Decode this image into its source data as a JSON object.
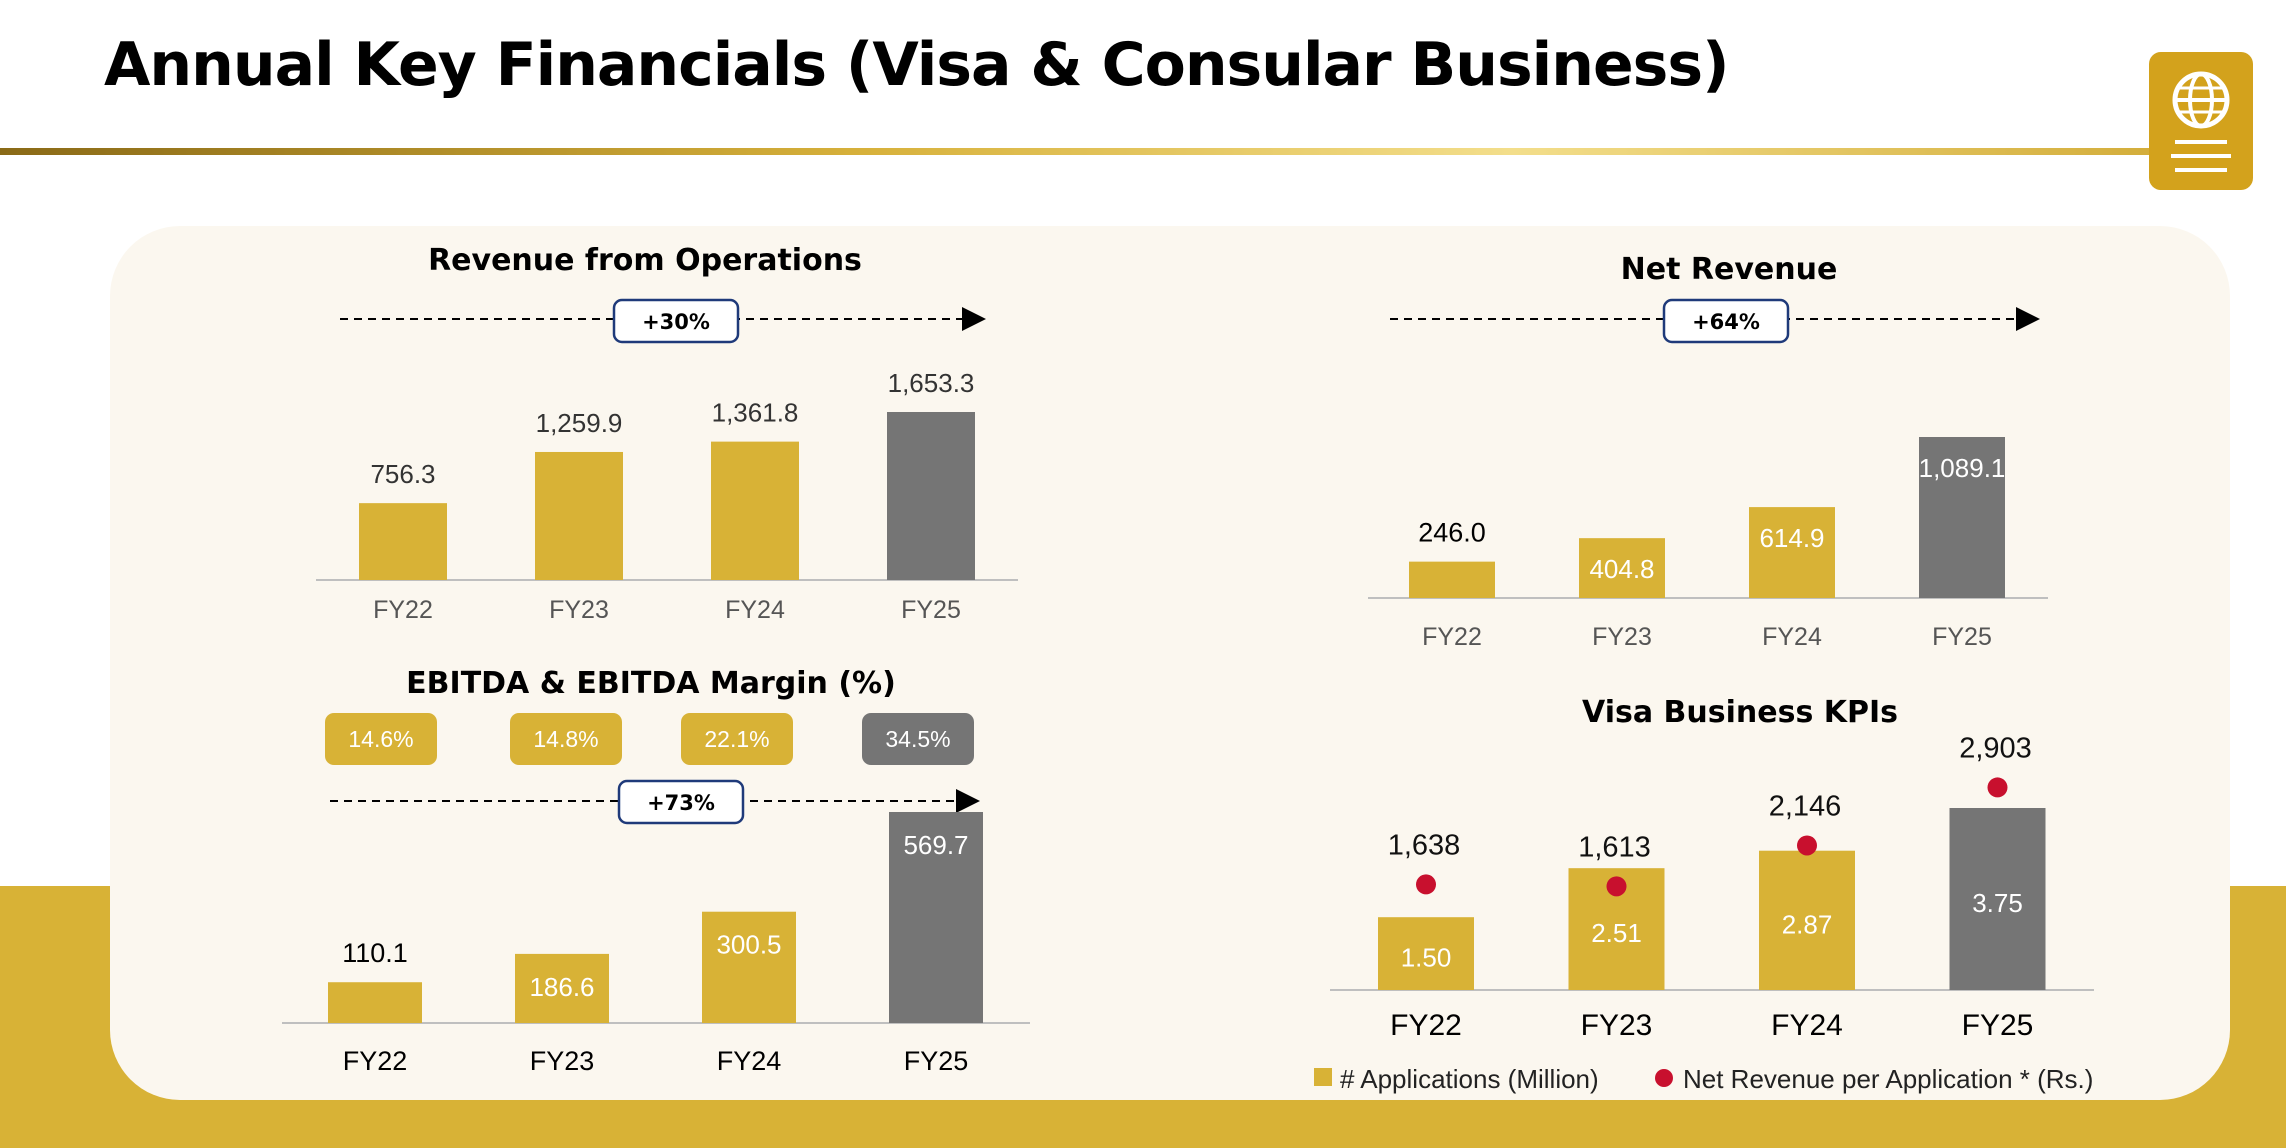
{
  "page": {
    "title": "Annual Key Financials (Visa & Consular Business)"
  },
  "colors": {
    "gold": "#d8b236",
    "grey": "#757575",
    "red": "#c8102e",
    "navy": "#1f3a7a",
    "panel": "#fbf7ef"
  },
  "icon": "globe-document-icon",
  "chart_data": [
    {
      "id": "revenue",
      "type": "bar",
      "title": "Revenue from Operations",
      "categories": [
        "FY22",
        "FY23",
        "FY24",
        "FY25"
      ],
      "values": [
        756.3,
        1259.9,
        1361.8,
        1653.3
      ],
      "value_labels": [
        "756.3",
        "1,259.9",
        "1,361.8",
        "1,653.3"
      ],
      "growth_label": "+30%",
      "ylim": [
        0,
        1653.3
      ],
      "highlight_last": true
    },
    {
      "id": "net_revenue",
      "type": "bar",
      "title": "Net Revenue",
      "categories": [
        "FY22",
        "FY23",
        "FY24",
        "FY25"
      ],
      "values": [
        246.0,
        404.8,
        614.9,
        1089.1
      ],
      "value_labels": [
        "246.0",
        "404.8",
        "614.9",
        "1,089.1"
      ],
      "growth_label": "+64%",
      "ylim": [
        0,
        1089.1
      ],
      "highlight_last": true
    },
    {
      "id": "ebitda",
      "type": "bar",
      "title": "EBITDA & EBITDA Margin (%)",
      "categories": [
        "FY22",
        "FY23",
        "FY24",
        "FY25"
      ],
      "values": [
        110.1,
        186.6,
        300.5,
        569.7
      ],
      "value_labels": [
        "110.1",
        "186.6",
        "300.5",
        "569.7"
      ],
      "margins": [
        "14.6%",
        "14.8%",
        "22.1%",
        "34.5%"
      ],
      "growth_label": "+73%",
      "ylim": [
        0,
        569.7
      ],
      "highlight_last": true
    },
    {
      "id": "visa_kpis",
      "type": "bar",
      "title": "Visa Business KPIs",
      "categories": [
        "FY22",
        "FY23",
        "FY24",
        "FY25"
      ],
      "series": [
        {
          "name": "# Applications (Million)",
          "values": [
            1.5,
            2.51,
            2.87,
            3.75
          ],
          "value_labels": [
            "1.50",
            "2.51",
            "2.87",
            "3.75"
          ]
        },
        {
          "name": "Net Revenue per Application * (Rs.)",
          "values": [
            1638,
            1613,
            2146,
            2903
          ],
          "value_labels": [
            "1,638",
            "1,613",
            "2,146",
            "2,903"
          ]
        }
      ],
      "legend_position": "bottom",
      "highlight_last": true
    }
  ]
}
